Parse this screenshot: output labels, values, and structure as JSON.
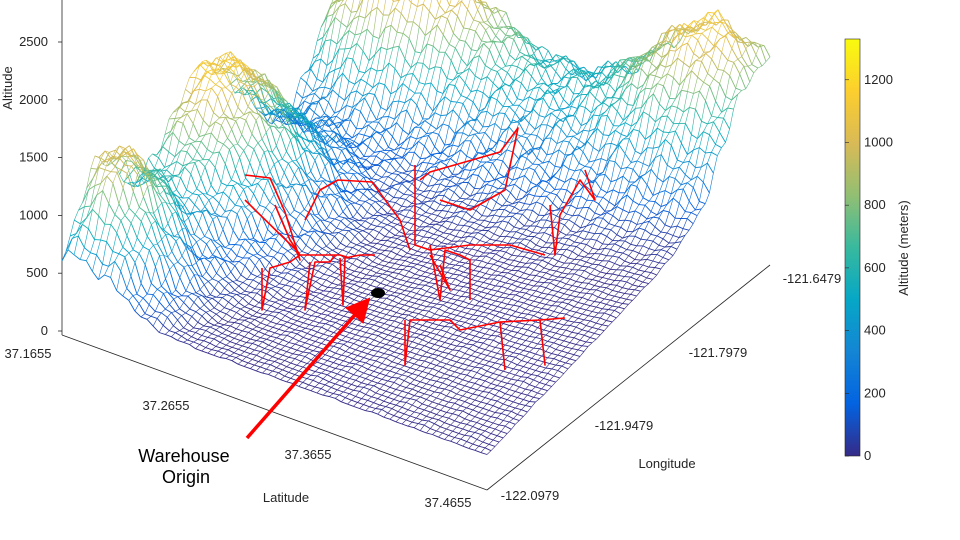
{
  "chart_data": {
    "type": "surface",
    "xlabel": "Latitude",
    "ylabel": "Longitude",
    "zlabel": "Altitude",
    "latitude_ticks": [
      "37.1655",
      "37.2655",
      "37.3655",
      "37.4655"
    ],
    "longitude_ticks": [
      "-122.0979",
      "-121.9479",
      "-121.7979",
      "-121.6479"
    ],
    "altitude_ticks": [
      "0",
      "500",
      "1000",
      "1500",
      "2000",
      "2500"
    ],
    "xlim": [
      37.1655,
      37.4655
    ],
    "ylim": [
      -122.0979,
      -121.6479
    ],
    "zlim": [
      0,
      2500
    ],
    "colorbar": {
      "label": "Altitude (meters)",
      "ticks": [
        "0",
        "200",
        "400",
        "600",
        "800",
        "1000",
        "1200"
      ],
      "range": [
        0,
        1330
      ],
      "colormap": "parula"
    },
    "terrain_profile": {
      "description_free_grid": true,
      "peak_altitudes_m": [
        1150,
        1250,
        1000,
        1000
      ]
    },
    "paths": {
      "color": "#ff0000",
      "description": "delivery flight paths"
    },
    "annotation": {
      "lines": [
        "Warehouse",
        "Origin"
      ],
      "arrow_color": "#ff0000",
      "marker_color": "#000000"
    }
  }
}
